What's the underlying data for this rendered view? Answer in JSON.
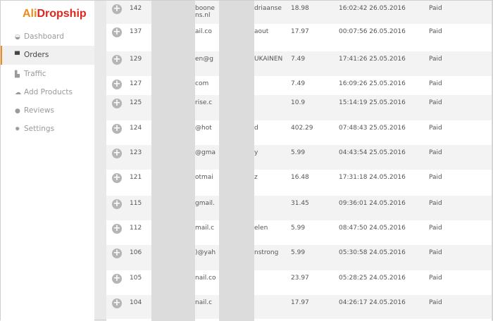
{
  "logo": {
    "part1": "Ali",
    "part2": "Dropship"
  },
  "sidebar": {
    "items": [
      {
        "label": "Dashboard",
        "icon": "dashboard-icon",
        "active": false
      },
      {
        "label": "Orders",
        "icon": "cart-icon",
        "active": true
      },
      {
        "label": "Traffic",
        "icon": "chart-icon",
        "active": false
      },
      {
        "label": "Add Products",
        "icon": "cloud-upload-icon",
        "active": false
      },
      {
        "label": "Reviews",
        "icon": "comment-icon",
        "active": false
      },
      {
        "label": "Settings",
        "icon": "gear-icon",
        "active": false
      }
    ]
  },
  "orders": [
    {
      "id": "142",
      "email": "boone",
      "email2": "ns.nl",
      "name": "driaanse",
      "amount": "18.98",
      "date": "16:02:42 26.05.2016",
      "status": "Paid"
    },
    {
      "id": "137",
      "email": "ail.co",
      "name": "aout",
      "amount": "17.97",
      "date": "00:07:56 26.05.2016",
      "status": "Paid"
    },
    {
      "id": "129",
      "email": "en@g",
      "name": "UKAINEN",
      "amount": "7.49",
      "date": "17:41:26 25.05.2016",
      "status": "Paid"
    },
    {
      "id": "127",
      "email": "com",
      "name": "",
      "amount": "7.49",
      "date": "16:09:26 25.05.2016",
      "status": "Paid"
    },
    {
      "id": "125",
      "email": "rise.c",
      "name": "",
      "amount": "10.9",
      "date": "15:14:19 25.05.2016",
      "status": "Paid"
    },
    {
      "id": "124",
      "email": "@hot",
      "name": "d",
      "amount": "402.29",
      "date": "07:48:43 25.05.2016",
      "status": "Paid"
    },
    {
      "id": "123",
      "email": "@gma",
      "name": "y",
      "amount": "5.99",
      "date": "04:43:54 25.05.2016",
      "status": "Paid"
    },
    {
      "id": "121",
      "email": "otmai",
      "name": "z",
      "amount": "16.48",
      "date": "17:31:18 24.05.2016",
      "status": "Paid"
    },
    {
      "id": "115",
      "email": "gmail.",
      "name": "",
      "amount": "31.45",
      "date": "09:36:01 24.05.2016",
      "status": "Paid"
    },
    {
      "id": "112",
      "email": "mail.c",
      "name": "elen",
      "amount": "5.99",
      "date": "08:47:50 24.05.2016",
      "status": "Paid"
    },
    {
      "id": "106",
      "email": ")@yah",
      "name": "nstrong",
      "amount": "5.99",
      "date": "05:30:58 24.05.2016",
      "status": "Paid"
    },
    {
      "id": "105",
      "email": "nail.co",
      "name": "",
      "amount": "23.97",
      "date": "05:28:25 24.05.2016",
      "status": "Paid"
    },
    {
      "id": "104",
      "email": "nail.c",
      "name": "",
      "amount": "17.97",
      "date": "04:26:17 24.05.2016",
      "status": "Paid"
    }
  ]
}
